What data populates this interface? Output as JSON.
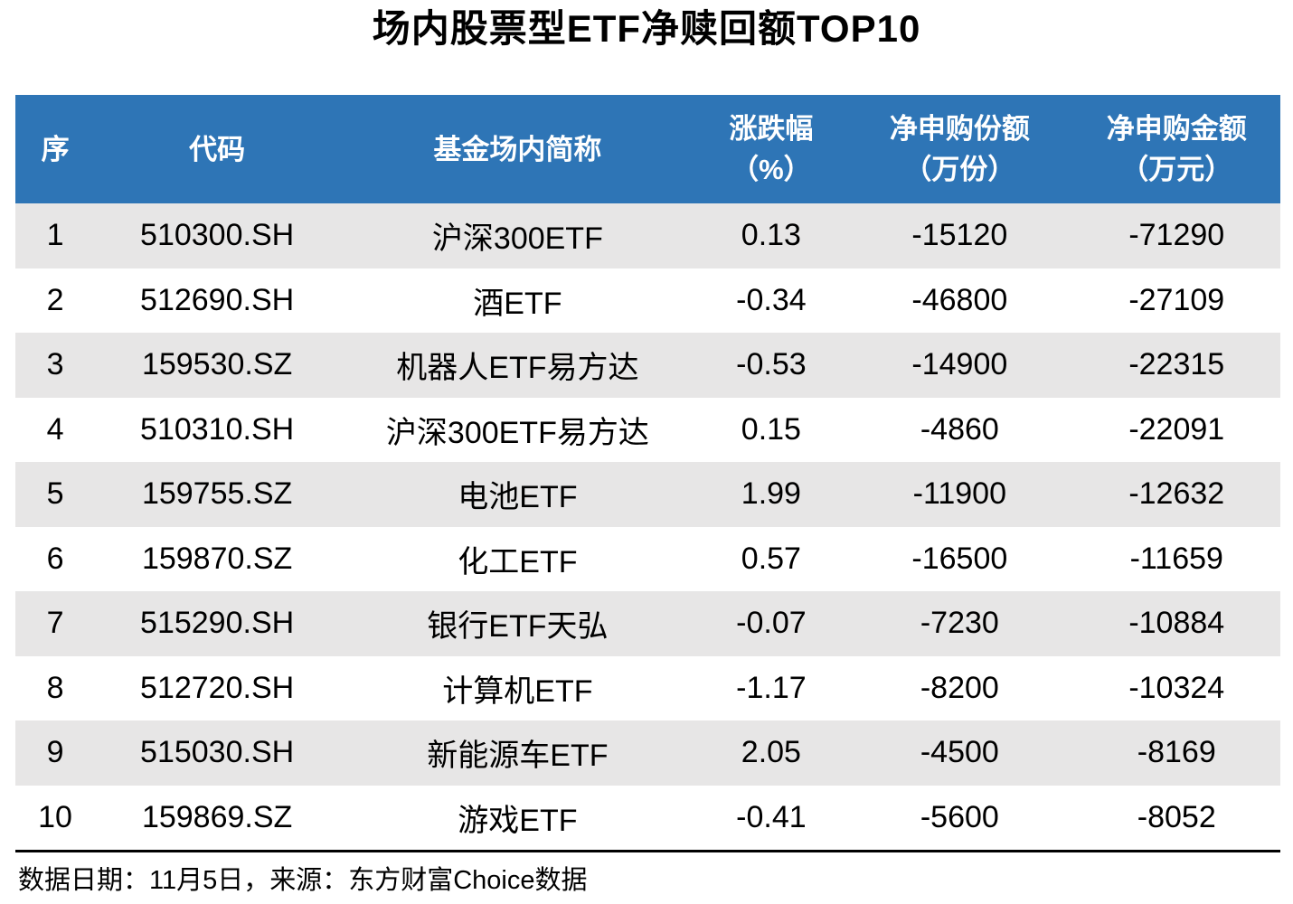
{
  "page": {
    "title": "场内股票型ETF净赎回额TOP10"
  },
  "colors": {
    "header_bg": "#2E75B6",
    "header_text": "#FFFFFF",
    "stripe_bg": "#E7E6E6",
    "body_text": "#000000",
    "footer_rule": "#000000"
  },
  "table": {
    "columns": [
      {
        "label": "序",
        "unit": ""
      },
      {
        "label": "代码",
        "unit": ""
      },
      {
        "label": "基金场内简称",
        "unit": ""
      },
      {
        "label": "涨跌幅",
        "unit": "（%）"
      },
      {
        "label": "净申购份额",
        "unit": "（万份）"
      },
      {
        "label": "净申购金额",
        "unit": "（万元）"
      }
    ]
  },
  "footer": {
    "note": "数据日期：11月5日，来源：东方财富Choice数据"
  },
  "chart_data": {
    "type": "table",
    "title": "场内股票型ETF净赎回额TOP10",
    "columns": [
      "序",
      "代码",
      "基金场内简称",
      "涨跌幅(%)",
      "净申购份额(万份)",
      "净申购金额(万元)"
    ],
    "rows": [
      [
        1,
        "510300.SH",
        "沪深300ETF",
        0.13,
        -15120,
        -71290
      ],
      [
        2,
        "512690.SH",
        "酒ETF",
        -0.34,
        -46800,
        -27109
      ],
      [
        3,
        "159530.SZ",
        "机器人ETF易方达",
        -0.53,
        -14900,
        -22315
      ],
      [
        4,
        "510310.SH",
        "沪深300ETF易方达",
        0.15,
        -4860,
        -22091
      ],
      [
        5,
        "159755.SZ",
        "电池ETF",
        1.99,
        -11900,
        -12632
      ],
      [
        6,
        "159870.SZ",
        "化工ETF",
        0.57,
        -16500,
        -11659
      ],
      [
        7,
        "515290.SH",
        "银行ETF天弘",
        -0.07,
        -7230,
        -10884
      ],
      [
        8,
        "512720.SH",
        "计算机ETF",
        -1.17,
        -8200,
        -10324
      ],
      [
        9,
        "515030.SH",
        "新能源车ETF",
        2.05,
        -4500,
        -8169
      ],
      [
        10,
        "159869.SZ",
        "游戏ETF",
        -0.41,
        -5600,
        -8052
      ]
    ],
    "source_note": "数据日期：11月5日，来源：东方财富Choice数据"
  }
}
